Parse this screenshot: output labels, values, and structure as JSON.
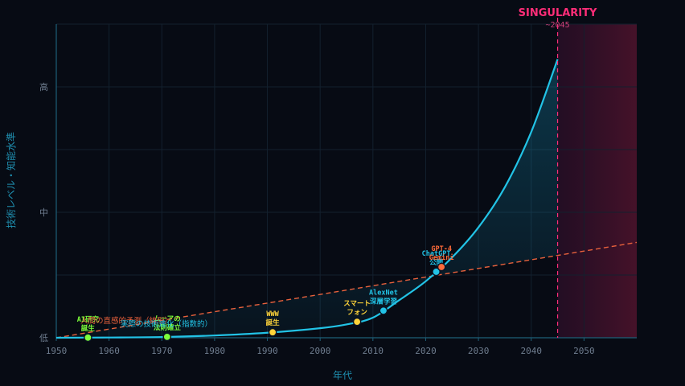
{
  "chart_data": {
    "type": "line",
    "xlabel": "年代",
    "ylabel": "技術レベル・知能水準",
    "xlim": [
      1950,
      2060
    ],
    "x_ticks": [
      1950,
      1960,
      1970,
      1980,
      1990,
      2000,
      2010,
      2020,
      2030,
      2040,
      2050
    ],
    "y_tick_labels": [
      {
        "label": "低",
        "value": 0
      },
      {
        "label": "中",
        "value": 50
      },
      {
        "label": "高",
        "value": 100
      }
    ],
    "grid": true,
    "series": [
      {
        "name": "実際の技術進化（指数的）",
        "style": "solid",
        "color": "#22c3e6",
        "x": [
          1950,
          1960,
          1970,
          1980,
          1990,
          2000,
          2005,
          2010,
          2015,
          2020,
          2025,
          2030,
          2035,
          2040,
          2045
        ],
        "y": [
          0,
          0.1,
          0.3,
          0.9,
          2,
          3.8,
          5.3,
          8,
          15,
          22.5,
          32,
          44,
          60,
          82,
          111
        ]
      },
      {
        "name": "人間の直感的予測（線形）",
        "style": "dashed",
        "color": "#e8613c",
        "x": [
          1950,
          2060
        ],
        "y": [
          0,
          38
        ]
      }
    ],
    "events": [
      {
        "year": 1956,
        "lines": [
          "AI研究",
          "誕生"
        ],
        "color": "#7dff3a"
      },
      {
        "year": 1971,
        "lines": [
          "ムーアの",
          "法則確立"
        ],
        "color": "#7dff3a"
      },
      {
        "year": 1991,
        "lines": [
          "WWW",
          "誕生"
        ],
        "color": "#ffd43a"
      },
      {
        "year": 2007,
        "lines": [
          "スマート",
          "フォン"
        ],
        "color": "#ffd43a"
      },
      {
        "year": 2012,
        "lines": [
          "AlexNet",
          "深層学習"
        ],
        "color": "#22c3e6"
      },
      {
        "year": 2022,
        "lines": [
          "ChatGPT",
          "公開"
        ],
        "color": "#22c3e6"
      },
      {
        "year": 2023,
        "lines": [
          "GPT-4",
          "Gemini"
        ],
        "color": "#ff6b3a"
      }
    ],
    "singularity": {
      "year": 2045,
      "title": "SINGULARITY",
      "subtitle": "~2045",
      "color": "#ff2d78"
    }
  }
}
